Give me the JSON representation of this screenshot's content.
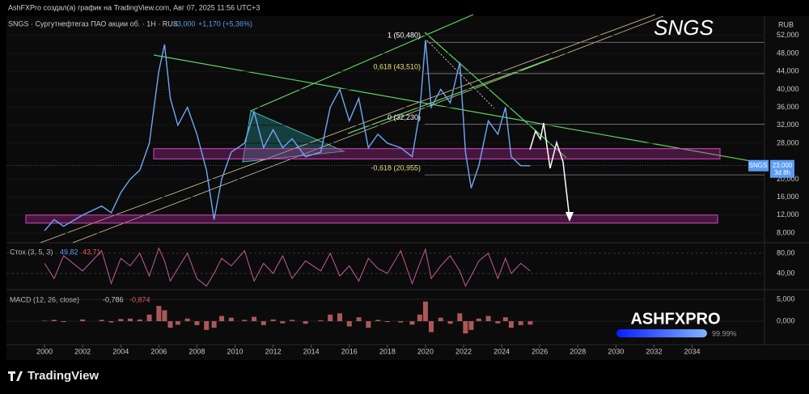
{
  "header": "AshFXPro создал(а) график на TradingView.com, Авг 07, 2025 11:56 UTC+3",
  "chart_data": {
    "type": "line",
    "title": "SNGS · Сургутнефтегаз ПАО акции об. · 1Н · RUS",
    "change": "+1,170 (+5,36%)",
    "watermark": "SNGS",
    "currency": "RUB",
    "x": [
      2000,
      2000.5,
      2001,
      2002,
      2003,
      2003.5,
      2004,
      2004.5,
      2005,
      2005.5,
      2006,
      2006.3,
      2006.6,
      2007,
      2007.5,
      2008,
      2008.5,
      2008.9,
      2009.3,
      2009.8,
      2010.5,
      2011,
      2011.5,
      2012,
      2012.5,
      2013,
      2013.7,
      2014.5,
      2015,
      2015.5,
      2016,
      2016.5,
      2017,
      2017.5,
      2018,
      2018.7,
      2019.3,
      2019.7,
      2020,
      2020.3,
      2020.8,
      2021.3,
      2021.8,
      2022.1,
      2022.4,
      2022.8,
      2023.3,
      2023.8,
      2024.2,
      2024.5,
      2025,
      2025.5
    ],
    "series": [
      {
        "name": "SNGS",
        "color": "#6fa8f5",
        "values": [
          8500,
          11000,
          9500,
          12000,
          14000,
          12500,
          17000,
          20000,
          22000,
          28000,
          44000,
          50000,
          38000,
          32000,
          36000,
          30000,
          22000,
          11000,
          20000,
          26000,
          28000,
          35000,
          27000,
          31000,
          27000,
          29000,
          25000,
          26000,
          36000,
          40000,
          33000,
          38000,
          27000,
          30000,
          28000,
          27000,
          25000,
          35000,
          51000,
          36000,
          40000,
          37000,
          46000,
          26000,
          18000,
          23000,
          33000,
          30000,
          36000,
          25000,
          23000,
          23000
        ]
      }
    ],
    "price_label": {
      "value": 23000,
      "label": "23,000"
    },
    "countdown": "3d 8h",
    "xlim": [
      1998,
      2037.8
    ],
    "xticks": [
      2000,
      2002,
      2004,
      2006,
      2008,
      2010,
      2012,
      2014,
      2016,
      2018,
      2020,
      2022,
      2024,
      2026,
      2028,
      2030,
      2032,
      2034
    ],
    "ylim": [
      5840,
      56290
    ],
    "yticks": [
      {
        "value": 8000,
        "label": "8,000"
      },
      {
        "value": 12000,
        "label": "12,000"
      },
      {
        "value": 16000,
        "label": "16,000"
      },
      {
        "value": 20000,
        "label": "20,000"
      },
      {
        "value": 28000,
        "label": "28,000"
      },
      {
        "value": 32000,
        "label": "32,000"
      },
      {
        "value": 36000,
        "label": "36,000"
      },
      {
        "value": 40000,
        "label": "40,000"
      },
      {
        "value": 44000,
        "label": "44,000"
      },
      {
        "value": 48000,
        "label": "48,000"
      },
      {
        "value": 52000,
        "label": "52,000"
      }
    ],
    "fib_levels": [
      {
        "label": "1 (50,480)",
        "value": 50480,
        "color": "#ffffff"
      },
      {
        "label": "0,618 (43,510)",
        "value": 43510,
        "color": "#e6e07a"
      },
      {
        "label": "0 (32,230)",
        "value": 32230,
        "color": "#ffffff"
      },
      {
        "label": "-0,618 (20,955)",
        "value": 20955,
        "color": "#e6e07a"
      }
    ],
    "zones": [
      [
        24500,
        26800
      ],
      [
        10200,
        12000
      ]
    ],
    "stoch": {
      "title": "Стох (3, 5, 3)",
      "k": "49,82",
      "d": "43,71",
      "color": "#c25c9a",
      "ylim": [
        12.8,
        92.8
      ],
      "yticks": [
        {
          "value": 80,
          "label": "80,00"
        },
        {
          "value": 40,
          "label": "40,00"
        }
      ],
      "values": [
        60,
        30,
        75,
        45,
        85,
        20,
        70,
        55,
        80,
        35,
        90,
        65,
        25,
        50,
        80,
        30,
        15,
        40,
        70,
        55,
        85,
        25,
        60,
        40,
        75,
        30,
        65,
        45,
        80,
        35,
        55,
        25,
        70,
        50,
        40,
        85,
        20,
        60,
        88,
        30,
        55,
        75,
        45,
        15,
        35,
        65,
        80,
        30,
        70,
        40,
        60,
        45
      ]
    },
    "macd": {
      "title": "MACD (12, 26, close)",
      "macd": "-0,786",
      "signal": "-0,874",
      "color": "#d46a6a",
      "ylim": [
        -5185,
        6481
      ],
      "yticks": [
        {
          "value": 5000,
          "label": "5,000"
        },
        {
          "value": 0,
          "label": "0,000"
        }
      ],
      "values": [
        100,
        300,
        -200,
        400,
        300,
        -300,
        500,
        600,
        400,
        1500,
        3500,
        2500,
        -1500,
        -800,
        600,
        -900,
        -2000,
        -1500,
        1200,
        800,
        300,
        1000,
        -900,
        400,
        -500,
        300,
        -600,
        200,
        1500,
        1800,
        -1200,
        900,
        -1500,
        300,
        -200,
        -300,
        -800,
        1500,
        4500,
        -2500,
        800,
        -600,
        1800,
        -2800,
        -2000,
        600,
        1200,
        -500,
        900,
        -1500,
        -900,
        -800
      ]
    }
  },
  "logo": "ASHFXPRO",
  "logo_pct": "99.99%",
  "brand": "TradingView"
}
